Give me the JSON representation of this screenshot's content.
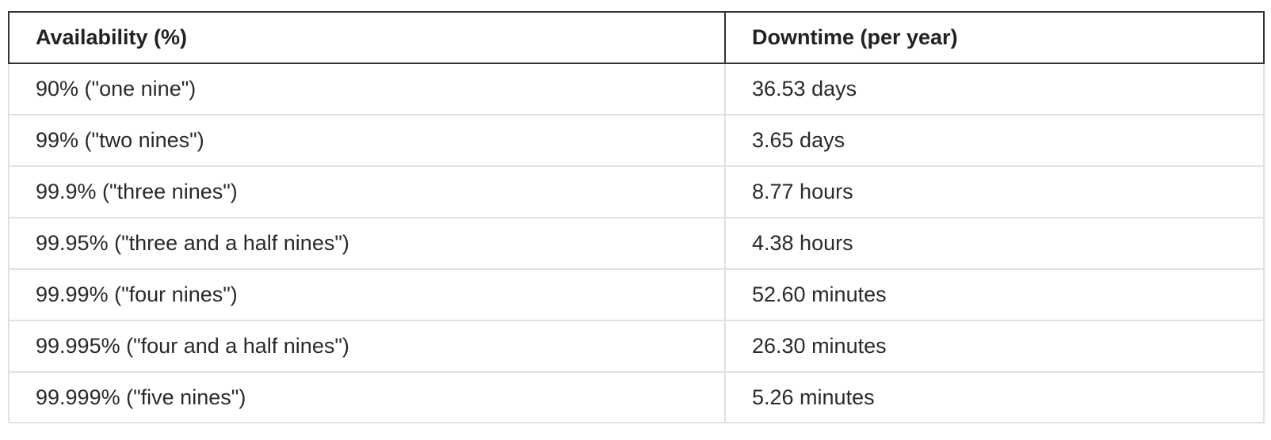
{
  "table": {
    "headers": [
      "Availability (%)",
      "Downtime (per year)"
    ],
    "rows": [
      [
        "90% (\"one nine\")",
        "36.53 days"
      ],
      [
        "99% (\"two nines\")",
        "3.65 days"
      ],
      [
        "99.9% (\"three nines\")",
        "8.77 hours"
      ],
      [
        "99.95% (\"three and a half nines\")",
        "4.38 hours"
      ],
      [
        "99.99% (\"four nines\")",
        "52.60 minutes"
      ],
      [
        "99.995% (\"four and a half nines\")",
        "26.30 minutes"
      ],
      [
        "99.999% (\"five nines\")",
        "5.26 minutes"
      ]
    ]
  }
}
